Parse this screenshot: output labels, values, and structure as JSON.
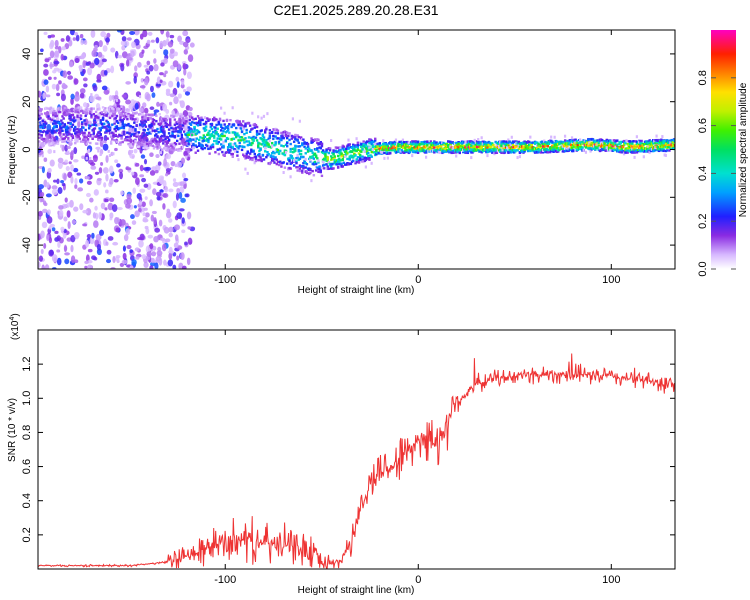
{
  "title": "C2E1.2025.289.20.28.E31",
  "colors": {
    "trace": "#ee3333",
    "frame": "#000000",
    "background": "#ffffff"
  },
  "chart_data": [
    {
      "type": "heatmap",
      "name": "spectrogram",
      "xlabel": "Height of straight line (km)",
      "ylabel": "Frequency (Hz)",
      "xlim": [
        -197,
        133
      ],
      "ylim": [
        -50,
        50
      ],
      "xticks": [
        -100,
        0,
        100
      ],
      "xtick_labels": [
        "-100",
        "0",
        "100"
      ],
      "yticks": [
        -40,
        -20,
        0,
        20,
        40
      ],
      "ytick_labels": [
        "-40",
        "-20",
        "0",
        "20",
        "40"
      ],
      "colorbar": {
        "label": "Normalized spectral amplitude",
        "range": [
          0,
          1
        ],
        "ticks": [
          0.0,
          0.2,
          0.4,
          0.6,
          0.8
        ],
        "tick_labels": [
          "0.0",
          "0.2",
          "0.4",
          "0.6",
          "0.8"
        ]
      },
      "ridge": {
        "description_points_x": [
          -160,
          -130,
          -110,
          -90,
          -70,
          -55,
          -45,
          -35,
          -25,
          -10,
          0,
          10,
          30,
          60,
          90,
          110,
          133
        ],
        "description_points_freq": [
          10,
          7,
          6,
          4,
          0,
          -3,
          -4,
          -2,
          0,
          1,
          1,
          1,
          1,
          1,
          2,
          1,
          2
        ]
      }
    },
    {
      "type": "line",
      "name": "snr",
      "xlabel": "Height of straight line (km)",
      "ylabel": "SNR (10 * v/v)",
      "y_scale_label": "(x10",
      "y_scale_exponent": "4",
      "xlim": [
        -197,
        133
      ],
      "ylim": [
        0,
        1.4
      ],
      "xticks": [
        -100,
        0,
        100
      ],
      "xtick_labels": [
        "-100",
        "0",
        "100"
      ],
      "yticks": [
        0.2,
        0.4,
        0.6,
        0.8,
        1.0,
        1.2
      ],
      "ytick_labels": [
        "0.2",
        "0.4",
        "0.6",
        "0.8",
        "1.0",
        "1.2"
      ],
      "trend_x": [
        -197,
        -170,
        -150,
        -140,
        -130,
        -120,
        -110,
        -100,
        -90,
        -80,
        -70,
        -60,
        -55,
        -50,
        -45,
        -40,
        -35,
        -30,
        -25,
        -20,
        -15,
        -10,
        -5,
        0,
        5,
        10,
        15,
        20,
        30,
        40,
        60,
        80,
        100,
        120,
        133
      ],
      "trend_y": [
        0.02,
        0.02,
        0.02,
        0.03,
        0.04,
        0.07,
        0.12,
        0.16,
        0.17,
        0.15,
        0.14,
        0.12,
        0.09,
        0.04,
        0.03,
        0.05,
        0.15,
        0.35,
        0.5,
        0.58,
        0.6,
        0.64,
        0.7,
        0.76,
        0.78,
        0.72,
        0.88,
        0.98,
        1.08,
        1.12,
        1.14,
        1.14,
        1.13,
        1.1,
        1.08
      ]
    }
  ]
}
